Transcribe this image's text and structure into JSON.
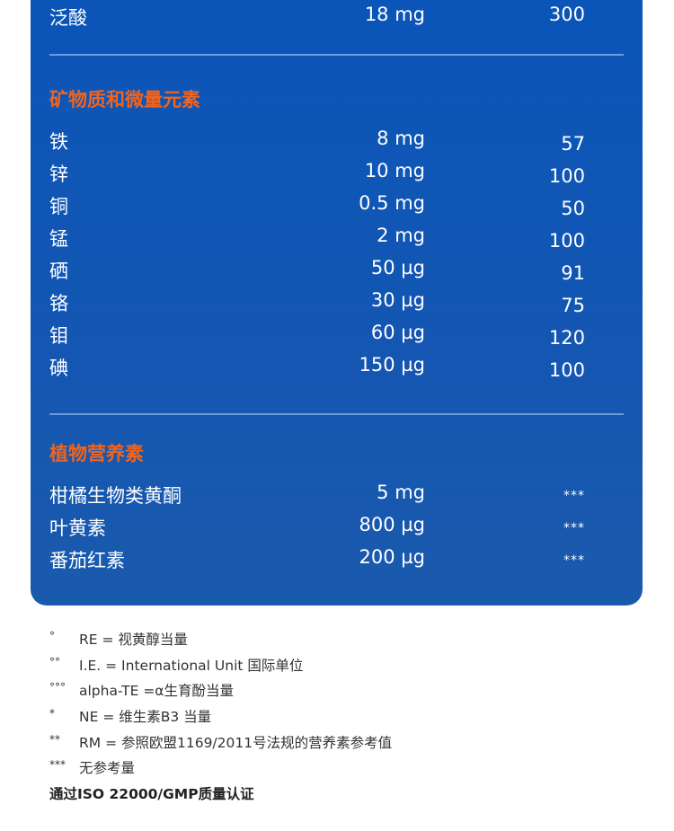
{
  "top_row": {
    "name": "泛酸",
    "amount": "18 mg",
    "rm": "300"
  },
  "minerals": {
    "title": "矿物质和微量元素",
    "rows": [
      {
        "name": "铁",
        "amount": "8 mg",
        "rm": "57"
      },
      {
        "name": "锌",
        "amount": "10 mg",
        "rm": "100"
      },
      {
        "name": "铜",
        "amount": "0.5 mg",
        "rm": "50"
      },
      {
        "name": "锰",
        "amount": "2 mg",
        "rm": "100"
      },
      {
        "name": "硒",
        "amount": "50 µg",
        "rm": "91"
      },
      {
        "name": "铬",
        "amount": "30 µg",
        "rm": "75"
      },
      {
        "name": "钼",
        "amount": "60 µg",
        "rm": "120"
      },
      {
        "name": "碘",
        "amount": "150 µg",
        "rm": "100"
      }
    ]
  },
  "phyto": {
    "title": "植物营养素",
    "rows": [
      {
        "name": "柑橘生物类黄酮",
        "amount": "5 mg",
        "rm": "***"
      },
      {
        "name": "叶黄素",
        "amount": "800 µg",
        "rm": "***"
      },
      {
        "name": "番茄红素",
        "amount": "200 µg",
        "rm": "***"
      }
    ]
  },
  "notes": [
    {
      "symbol": "°",
      "text": "RE = 视黄醇当量"
    },
    {
      "symbol": "°°",
      "text": "I.E. = International Unit 国际单位"
    },
    {
      "symbol": "°°°",
      "text": "alpha-TE =α生育酚当量"
    },
    {
      "symbol": "*",
      "text": "NE = 维生素B3 当量"
    },
    {
      "symbol": "**",
      "text": "RM = 参照欧盟1169/2011号法规的营养素参考值"
    },
    {
      "symbol": "***",
      "text": "无参考量"
    }
  ],
  "certification": "通过ISO 22000/GMP质量认证",
  "colors": {
    "panel": "#0a55b9",
    "accent": "#f0641e"
  }
}
